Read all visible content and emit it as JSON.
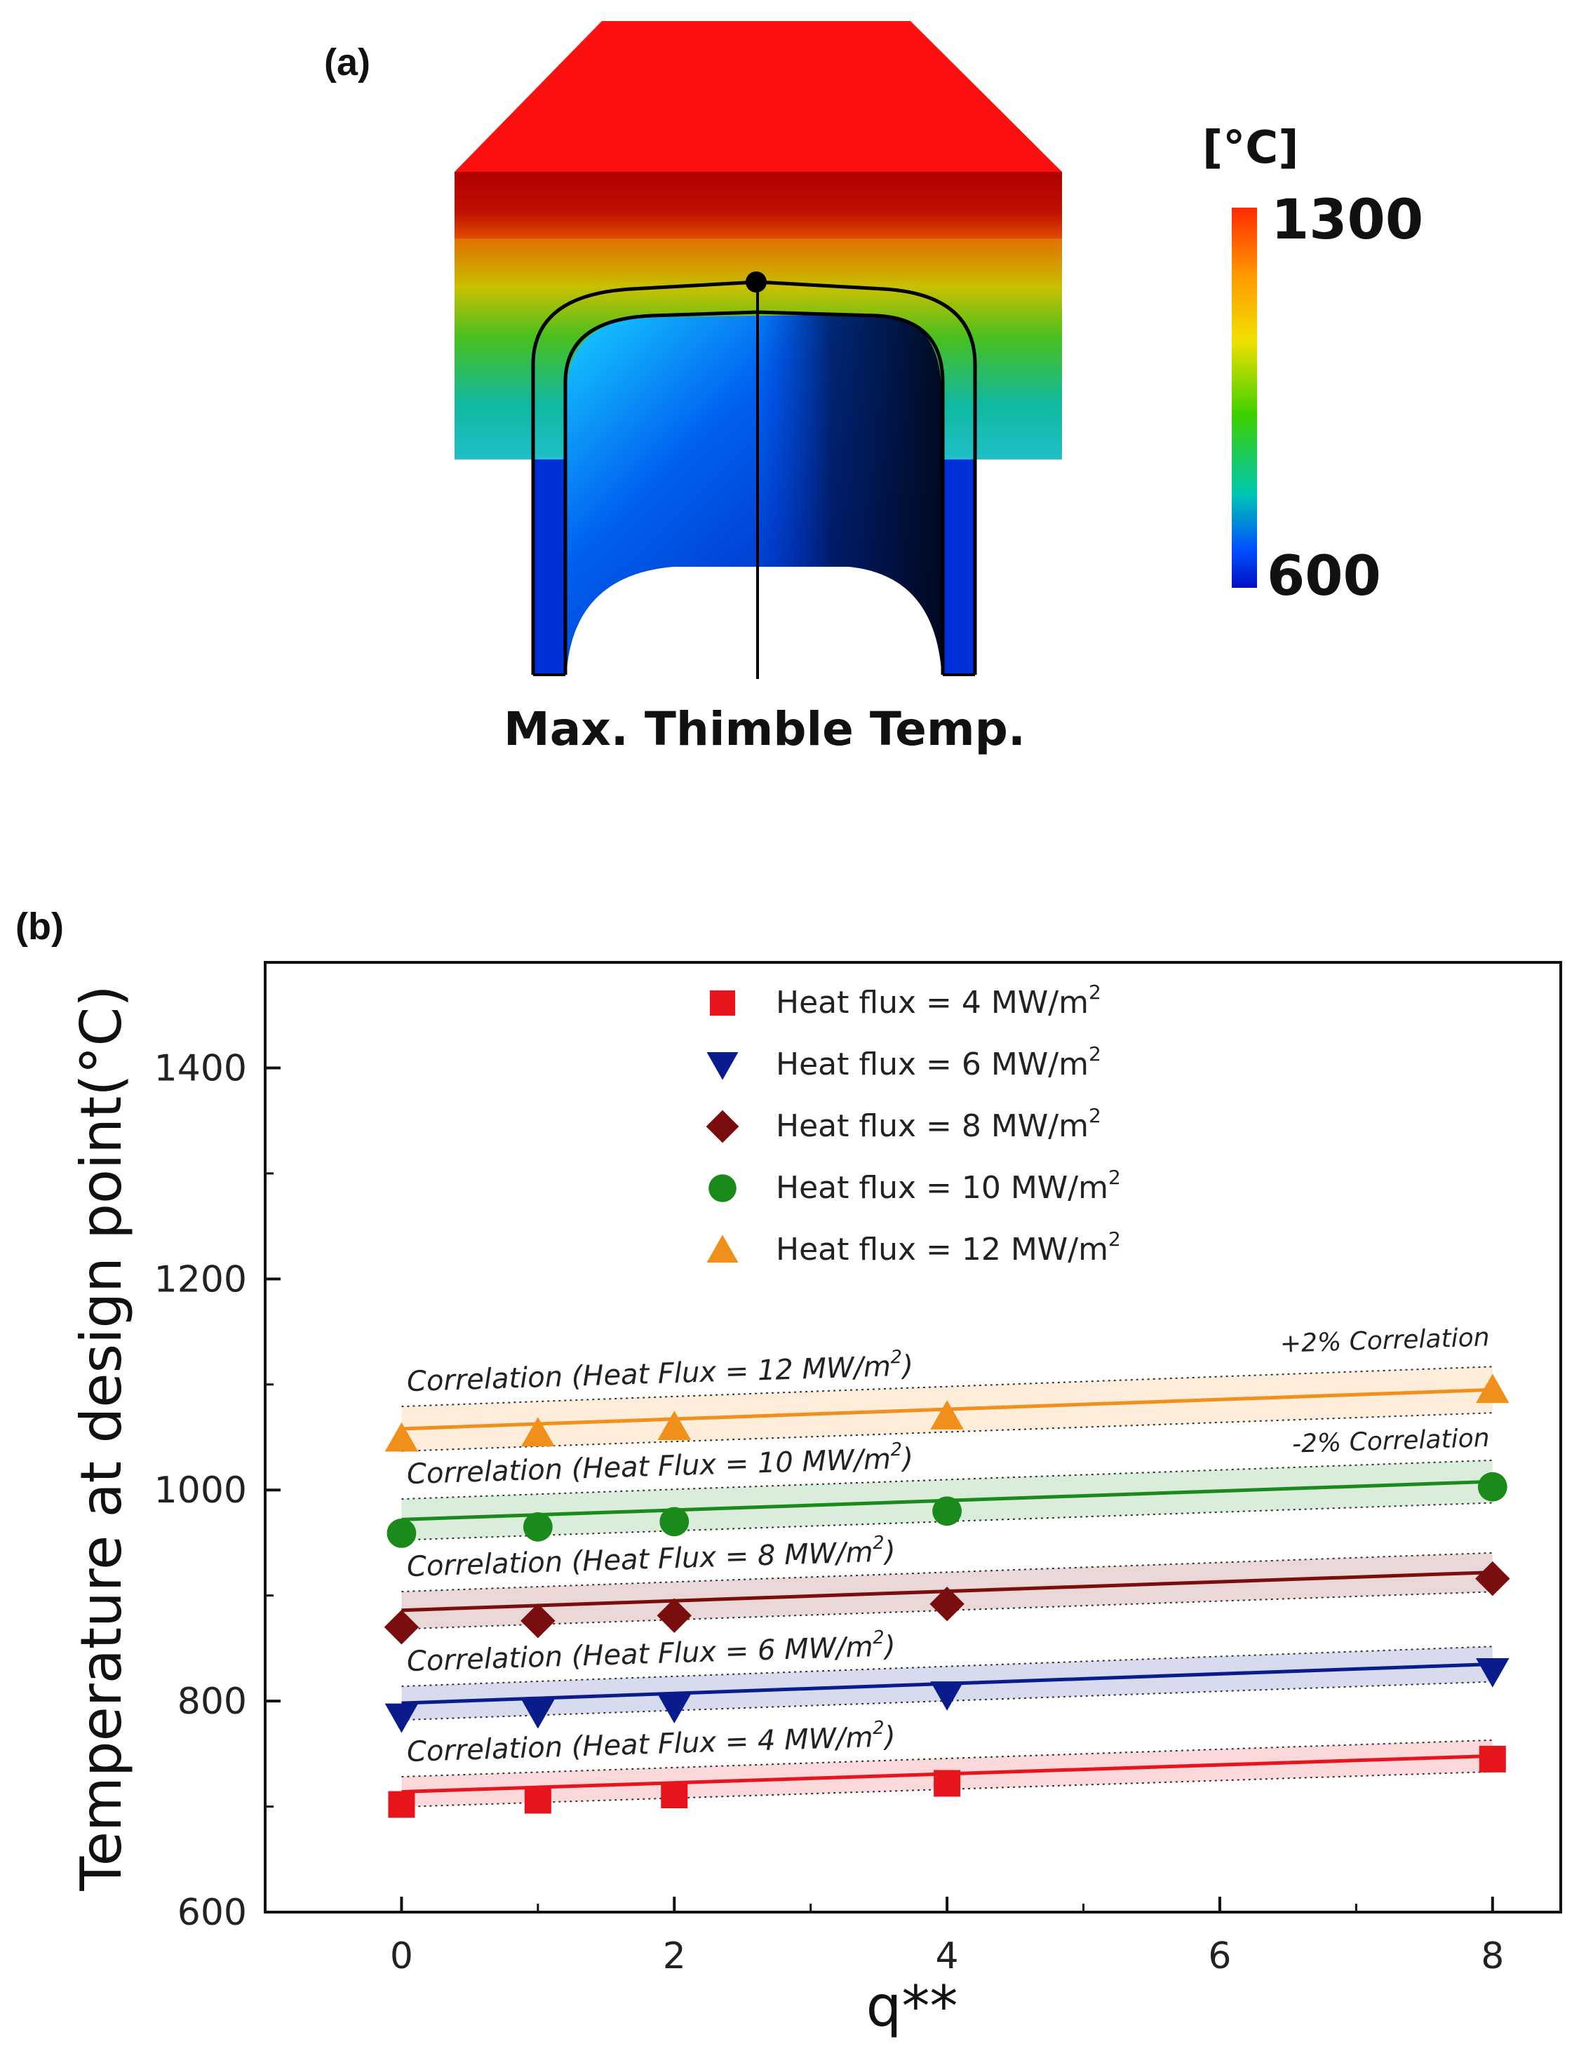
{
  "panel_a": {
    "label": "(a)",
    "caption": "Max. Thimble Temp.",
    "colorbar": {
      "unit": "[°C]",
      "max_label": "1300",
      "min_label": "600",
      "colors": [
        "#ff2a00",
        "#ff9a00",
        "#f0e000",
        "#3ad000",
        "#00c8b0",
        "#0050ff",
        "#0010c0"
      ]
    }
  },
  "panel_b": {
    "label": "(b)"
  },
  "chart_data": {
    "type": "scatter",
    "xlabel": "q**",
    "ylabel": "Temperature at design point(°C)",
    "xlim": [
      -1,
      8.5
    ],
    "ylim": [
      600,
      1500
    ],
    "xticks": [
      0,
      2,
      4,
      6,
      8
    ],
    "yticks": [
      600,
      800,
      1000,
      1200,
      1400
    ],
    "grid": false,
    "legend_position": "top-center",
    "band_labels": {
      "upper": "+2% Correlation",
      "lower": "-2% Correlation"
    },
    "series": [
      {
        "name": "Heat flux = 4 MW/m",
        "superscript": "2",
        "marker": "square",
        "color": "#e8141c",
        "x": [
          0,
          1,
          2,
          4,
          8
        ],
        "values": [
          702,
          706,
          711,
          722,
          745
        ],
        "correlation": {
          "label": "Correlation (Heat Flux = 4 MW/m",
          "superscript": "2",
          "suffix": ")",
          "x": [
            0,
            8
          ],
          "y": [
            714,
            748
          ]
        }
      },
      {
        "name": "Heat flux = 6 MW/m",
        "superscript": "2",
        "marker": "triangle-down",
        "color": "#0a1c8c",
        "x": [
          0,
          1,
          2,
          4,
          8
        ],
        "values": [
          785,
          789,
          794,
          806,
          828
        ],
        "correlation": {
          "label": "Correlation (Heat Flux = 6 MW/m",
          "superscript": "2",
          "suffix": ")",
          "x": [
            0,
            8
          ],
          "y": [
            798,
            835
          ]
        }
      },
      {
        "name": "Heat flux = 8 MW/m",
        "superscript": "2",
        "marker": "diamond",
        "color": "#7a0e0e",
        "x": [
          0,
          1,
          2,
          4,
          8
        ],
        "values": [
          870,
          876,
          881,
          892,
          916
        ],
        "correlation": {
          "label": "Correlation (Heat Flux = 8 MW/m",
          "superscript": "2",
          "suffix": ")",
          "x": [
            0,
            8
          ],
          "y": [
            886,
            922
          ]
        }
      },
      {
        "name": "Heat flux = 10 MW/m",
        "superscript": "2",
        "marker": "circle",
        "color": "#1a8a1a",
        "x": [
          0,
          1,
          2,
          4,
          8
        ],
        "values": [
          959,
          965,
          970,
          980,
          1003
        ],
        "correlation": {
          "label": "Correlation (Heat Flux = 10 MW/m",
          "superscript": "2",
          "suffix": ")",
          "x": [
            0,
            8
          ],
          "y": [
            972,
            1008
          ]
        }
      },
      {
        "name": "Heat flux = 12 MW/m",
        "superscript": "2",
        "marker": "triangle-up",
        "color": "#f0901a",
        "x": [
          0,
          1,
          2,
          4,
          8
        ],
        "values": [
          1049,
          1054,
          1060,
          1070,
          1095
        ],
        "correlation": {
          "label": "Correlation (Heat Flux = 12 MW/m",
          "superscript": "2",
          "suffix": ")",
          "x": [
            0,
            8
          ],
          "y": [
            1058,
            1095
          ]
        }
      }
    ]
  }
}
